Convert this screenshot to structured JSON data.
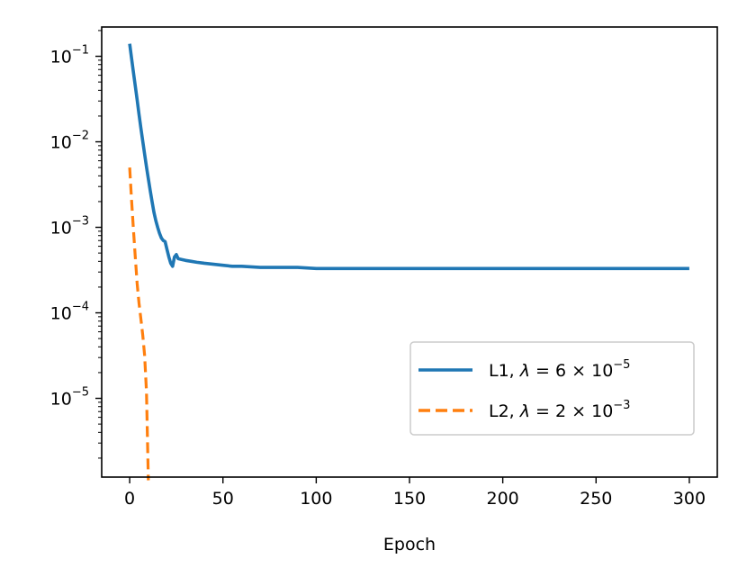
{
  "chart_data": {
    "type": "line",
    "title": "",
    "xlabel": "Epoch",
    "ylabel": "",
    "xscale": "linear",
    "yscale": "log",
    "xlim": [
      -15,
      315
    ],
    "ylim": [
      1.2e-06,
      0.22
    ],
    "xticks": [
      0,
      50,
      100,
      150,
      200,
      250,
      300
    ],
    "xtick_labels": [
      "0",
      "50",
      "100",
      "150",
      "200",
      "250",
      "300"
    ],
    "yticks": [
      1e-05,
      0.0001,
      0.001,
      0.01,
      0.1
    ],
    "ytick_labels": [
      {
        "base": "10",
        "exp": "−5"
      },
      {
        "base": "10",
        "exp": "−4"
      },
      {
        "base": "10",
        "exp": "−3"
      },
      {
        "base": "10",
        "exp": "−2"
      },
      {
        "base": "10",
        "exp": "−1"
      }
    ],
    "grid": false,
    "legend_position": "lower right",
    "series": [
      {
        "name": "L1, λ = 6 × 10⁻⁵",
        "legend_prefix": "L1, ",
        "legend_lambda": "λ",
        "legend_eq": " = 6 × 10",
        "legend_exp": "−5",
        "color": "#1f77b4",
        "style": "solid",
        "x": [
          0,
          1,
          2,
          3,
          4,
          5,
          6,
          7,
          8,
          9,
          10,
          11,
          12,
          13,
          14,
          15,
          16,
          17,
          18,
          19,
          20,
          21,
          22,
          23,
          24,
          25,
          26,
          28,
          30,
          33,
          36,
          40,
          45,
          50,
          55,
          60,
          70,
          80,
          90,
          100,
          120,
          140,
          160,
          180,
          200,
          220,
          240,
          260,
          280,
          300
        ],
        "y": [
          0.14,
          0.095,
          0.065,
          0.045,
          0.031,
          0.021,
          0.0145,
          0.0102,
          0.0072,
          0.0051,
          0.0037,
          0.0027,
          0.002,
          0.0015,
          0.0012,
          0.001,
          0.00085,
          0.00075,
          0.0007,
          0.00068,
          0.00055,
          0.00045,
          0.00038,
          0.00035,
          0.00045,
          0.00048,
          0.00043,
          0.00042,
          0.00041,
          0.0004,
          0.00039,
          0.00038,
          0.00037,
          0.00036,
          0.00035,
          0.00035,
          0.00034,
          0.00034,
          0.00034,
          0.00033,
          0.00033,
          0.00033,
          0.00033,
          0.00033,
          0.00033,
          0.00033,
          0.00033,
          0.00033,
          0.00033,
          0.00033
        ]
      },
      {
        "name": "L2, λ = 2 × 10⁻³",
        "legend_prefix": "L2, ",
        "legend_lambda": "λ",
        "legend_eq": " = 2 × 10",
        "legend_exp": "−3",
        "color": "#ff7f0e",
        "style": "dashed",
        "x": [
          0,
          1,
          2,
          3,
          4,
          5,
          6,
          7,
          8,
          9,
          10
        ],
        "y": [
          0.005,
          0.0021,
          0.00095,
          0.00045,
          0.00022,
          0.00013,
          8.5e-05,
          5.5e-05,
          3.2e-05,
          1.2e-05,
          1.1e-06
        ]
      }
    ]
  }
}
